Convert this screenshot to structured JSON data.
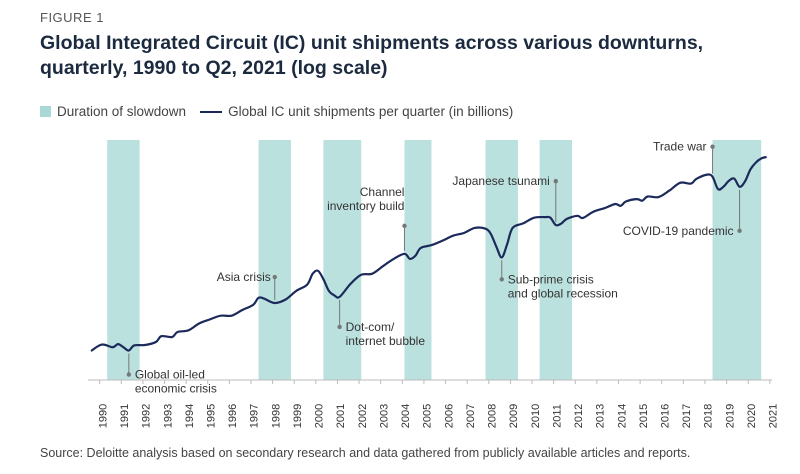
{
  "figure_label": "FIGURE 1",
  "title_line1": "Global Integrated Circuit (IC) unit shipments across various downturns,",
  "title_line2": "quarterly, 1990 to Q2, 2021 (log scale)",
  "legend": {
    "slowdown": "Duration of slowdown",
    "series": "Global IC unit shipments per quarter (in billions)"
  },
  "source": "Source: Deloitte analysis based on secondary research and data gathered from publicly available articles and reports.",
  "colors": {
    "band": "#a9d9d6",
    "line": "#1b2a5a",
    "annotation": "#777777"
  },
  "chart_data": {
    "type": "line",
    "xlabel": "",
    "ylabel": "",
    "y_scale": "log",
    "y_axis_labels": "none",
    "x_ticks": [
      "1990",
      "1991",
      "1992",
      "1993",
      "1994",
      "1995",
      "1996",
      "1997",
      "1998",
      "1999",
      "2000",
      "2001",
      "2002",
      "2003",
      "2004",
      "2005",
      "2006",
      "2007",
      "2008",
      "2009",
      "2010",
      "2011",
      "2012",
      "2013",
      "2014",
      "2015",
      "2016",
      "2017",
      "2018",
      "2019",
      "2020",
      "2021"
    ],
    "slowdowns": [
      {
        "start": 1990.75,
        "end": 1992.25
      },
      {
        "start": 1997.75,
        "end": 1999.25
      },
      {
        "start": 2000.75,
        "end": 2002.5
      },
      {
        "start": 2004.5,
        "end": 2005.75
      },
      {
        "start": 2008.25,
        "end": 2009.75
      },
      {
        "start": 2010.75,
        "end": 2012.25
      },
      {
        "start": 2018.75,
        "end": 2021.0
      }
    ],
    "series": [
      {
        "relative_level": [
          [
            1990.0,
            1.0
          ],
          [
            1990.5,
            1.14
          ],
          [
            1991.0,
            1.08
          ],
          [
            1991.25,
            1.15
          ],
          [
            1991.5,
            1.08
          ],
          [
            1991.75,
            1.01
          ],
          [
            1992.0,
            1.12
          ],
          [
            1992.5,
            1.13
          ],
          [
            1993.0,
            1.2
          ],
          [
            1993.25,
            1.35
          ],
          [
            1993.75,
            1.33
          ],
          [
            1994.0,
            1.47
          ],
          [
            1994.5,
            1.52
          ],
          [
            1995.0,
            1.75
          ],
          [
            1995.5,
            1.9
          ],
          [
            1996.0,
            2.05
          ],
          [
            1996.5,
            2.05
          ],
          [
            1997.0,
            2.3
          ],
          [
            1997.5,
            2.55
          ],
          [
            1997.75,
            2.95
          ],
          [
            1998.0,
            2.9
          ],
          [
            1998.5,
            2.65
          ],
          [
            1999.0,
            2.85
          ],
          [
            1999.5,
            3.4
          ],
          [
            2000.0,
            3.85
          ],
          [
            2000.25,
            4.8
          ],
          [
            2000.5,
            5.1
          ],
          [
            2000.75,
            4.3
          ],
          [
            2001.0,
            3.4
          ],
          [
            2001.25,
            3.1
          ],
          [
            2001.5,
            3.0
          ],
          [
            2002.0,
            3.9
          ],
          [
            2002.5,
            4.7
          ],
          [
            2003.0,
            4.8
          ],
          [
            2003.5,
            5.6
          ],
          [
            2004.0,
            6.5
          ],
          [
            2004.5,
            7.2
          ],
          [
            2004.75,
            6.5
          ],
          [
            2005.0,
            6.9
          ],
          [
            2005.25,
            8.1
          ],
          [
            2005.75,
            8.6
          ],
          [
            2006.25,
            9.4
          ],
          [
            2006.75,
            10.4
          ],
          [
            2007.25,
            11.0
          ],
          [
            2007.75,
            12.2
          ],
          [
            2008.25,
            12.0
          ],
          [
            2008.5,
            10.7
          ],
          [
            2008.75,
            8.3
          ],
          [
            2009.0,
            6.7
          ],
          [
            2009.25,
            8.8
          ],
          [
            2009.5,
            12.2
          ],
          [
            2010.0,
            13.4
          ],
          [
            2010.5,
            15.0
          ],
          [
            2011.0,
            15.2
          ],
          [
            2011.25,
            15.0
          ],
          [
            2011.5,
            12.9
          ],
          [
            2011.75,
            13.3
          ],
          [
            2012.0,
            14.6
          ],
          [
            2012.5,
            15.6
          ],
          [
            2012.75,
            14.9
          ],
          [
            2013.25,
            17.0
          ],
          [
            2013.75,
            18.2
          ],
          [
            2014.25,
            19.8
          ],
          [
            2014.5,
            19.1
          ],
          [
            2014.75,
            20.9
          ],
          [
            2015.25,
            21.9
          ],
          [
            2015.5,
            21.2
          ],
          [
            2015.75,
            23.1
          ],
          [
            2016.25,
            22.8
          ],
          [
            2016.75,
            26.0
          ],
          [
            2017.25,
            30.5
          ],
          [
            2017.75,
            30.0
          ],
          [
            2018.0,
            33.0
          ],
          [
            2018.5,
            36.0
          ],
          [
            2018.75,
            34.5
          ],
          [
            2019.0,
            26.8
          ],
          [
            2019.25,
            28.1
          ],
          [
            2019.5,
            31.7
          ],
          [
            2019.75,
            33.2
          ],
          [
            2020.0,
            28.1
          ],
          [
            2020.25,
            31.4
          ],
          [
            2020.5,
            40.0
          ],
          [
            2020.75,
            46.0
          ],
          [
            2021.0,
            50.0
          ],
          [
            2021.25,
            51.5
          ]
        ]
      }
    ],
    "annotations": [
      {
        "text": [
          "Global oil-led",
          "economic crisis"
        ],
        "x": 1991.75
      },
      {
        "text": [
          "Asia crisis"
        ],
        "x": 1998.5
      },
      {
        "text": [
          "Dot-com/",
          "internet bubble"
        ],
        "x": 2001.5
      },
      {
        "text": [
          "Channel",
          "inventory build"
        ],
        "x": 2004.5
      },
      {
        "text": [
          "Sub-prime crisis",
          "and global recession"
        ],
        "x": 2009.0
      },
      {
        "text": [
          "Japanese tsunami"
        ],
        "x": 2011.5
      },
      {
        "text": [
          "Trade war"
        ],
        "x": 2018.75
      },
      {
        "text": [
          "COVID-19 pandemic"
        ],
        "x": 2020.0
      }
    ]
  }
}
